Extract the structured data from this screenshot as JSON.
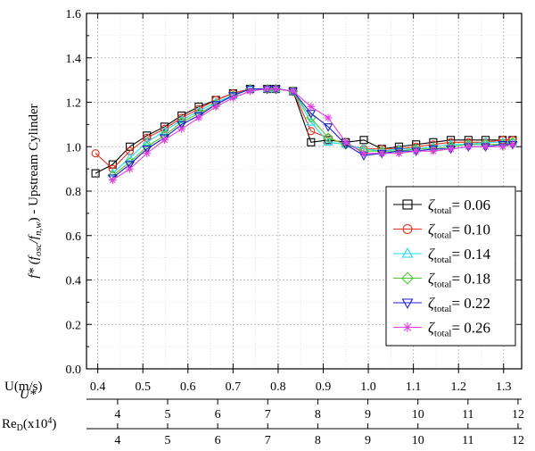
{
  "chart_data": {
    "type": "line",
    "ylabel": {
      "main": "f* (f",
      "sub1": "osc",
      "slash": "/f",
      "sub2": "n,w",
      "tail": ") - Upstream Cylinder"
    },
    "ylim": [
      0.0,
      1.6
    ],
    "yticks": [
      "0.0",
      "0.2",
      "0.4",
      "0.6",
      "0.8",
      "1.0",
      "1.2",
      "1.4",
      "1.6"
    ],
    "xlim": [
      0.375,
      1.34
    ],
    "xticks": [
      "0.4",
      "0.5",
      "0.6",
      "0.7",
      "0.8",
      "0.9",
      "1.0",
      "1.1",
      "1.2",
      "1.3"
    ],
    "grid": true,
    "legend_position": "lower-right",
    "secondary_axes": [
      {
        "label": "U(m/s)",
        "ticks": []
      },
      {
        "label": "U*",
        "ticks": [
          {
            "label": "4",
            "u": 0.444
          },
          {
            "label": "5",
            "u": 0.555
          },
          {
            "label": "6",
            "u": 0.666
          },
          {
            "label": "7",
            "u": 0.777
          },
          {
            "label": "8",
            "u": 0.888
          },
          {
            "label": "9",
            "u": 0.999
          },
          {
            "label": "10",
            "u": 1.11
          },
          {
            "label": "11",
            "u": 1.221
          },
          {
            "label": "12",
            "u": 1.332
          }
        ]
      },
      {
        "label_main": "Re",
        "label_sub": "D",
        "label_tail": "(x10",
        "label_sup": "4",
        "label_end": ")",
        "ticks": [
          {
            "label": "4",
            "u": 0.444
          },
          {
            "label": "5",
            "u": 0.555
          },
          {
            "label": "6",
            "u": 0.666
          },
          {
            "label": "7",
            "u": 0.777
          },
          {
            "label": "8",
            "u": 0.888
          },
          {
            "label": "9",
            "u": 0.999
          },
          {
            "label": "10",
            "u": 1.11
          },
          {
            "label": "11",
            "u": 1.221
          },
          {
            "label": "12",
            "u": 1.332
          }
        ]
      }
    ],
    "series": [
      {
        "name": "0.06",
        "color": "#000000",
        "marker": "square",
        "x": [
          0.395,
          0.433,
          0.471,
          0.509,
          0.548,
          0.586,
          0.624,
          0.662,
          0.7,
          0.738,
          0.776,
          0.795,
          0.833,
          0.873,
          0.911,
          0.95,
          0.99,
          1.03,
          1.068,
          1.106,
          1.144,
          1.183,
          1.222,
          1.26,
          1.298,
          1.32
        ],
        "y": [
          0.88,
          0.92,
          1.0,
          1.05,
          1.09,
          1.14,
          1.18,
          1.21,
          1.24,
          1.26,
          1.26,
          1.26,
          1.25,
          1.02,
          1.03,
          1.02,
          1.03,
          0.99,
          1.0,
          1.01,
          1.02,
          1.03,
          1.03,
          1.03,
          1.03,
          1.03
        ]
      },
      {
        "name": "0.10",
        "color": "#e8301a",
        "marker": "circle",
        "x": [
          0.395,
          0.433,
          0.471,
          0.509,
          0.548,
          0.586,
          0.624,
          0.662,
          0.7,
          0.738,
          0.776,
          0.795,
          0.833,
          0.873,
          0.911,
          0.95,
          0.99,
          1.03,
          1.068,
          1.106,
          1.144,
          1.183,
          1.222,
          1.26,
          1.298,
          1.32
        ],
        "y": [
          0.97,
          0.9,
          0.98,
          1.04,
          1.08,
          1.13,
          1.17,
          1.21,
          1.24,
          1.26,
          1.26,
          1.26,
          1.25,
          1.07,
          1.04,
          1.01,
          0.99,
          0.99,
          0.99,
          1.0,
          1.01,
          1.02,
          1.02,
          1.02,
          1.03,
          1.03
        ]
      },
      {
        "name": "0.14",
        "color": "#22d8ee",
        "marker": "triangle-up",
        "x": [
          0.433,
          0.471,
          0.509,
          0.548,
          0.586,
          0.624,
          0.662,
          0.7,
          0.738,
          0.776,
          0.795,
          0.833,
          0.873,
          0.911,
          0.95,
          0.99,
          1.03,
          1.068,
          1.106,
          1.144,
          1.183,
          1.222,
          1.26,
          1.298,
          1.32
        ],
        "y": [
          0.88,
          0.95,
          1.02,
          1.07,
          1.12,
          1.16,
          1.2,
          1.23,
          1.26,
          1.26,
          1.26,
          1.25,
          1.11,
          1.02,
          1.01,
          0.99,
          0.98,
          0.99,
          0.99,
          1.0,
          1.01,
          1.01,
          1.02,
          1.02,
          1.02
        ]
      },
      {
        "name": "0.18",
        "color": "#4ec832",
        "marker": "diamond",
        "x": [
          0.433,
          0.471,
          0.509,
          0.548,
          0.586,
          0.624,
          0.662,
          0.7,
          0.738,
          0.776,
          0.795,
          0.833,
          0.873,
          0.911,
          0.95,
          0.99,
          1.03,
          1.068,
          1.106,
          1.144,
          1.183,
          1.222,
          1.26,
          1.298,
          1.32
        ],
        "y": [
          0.87,
          0.93,
          1.0,
          1.05,
          1.11,
          1.15,
          1.19,
          1.23,
          1.26,
          1.26,
          1.26,
          1.25,
          1.13,
          1.04,
          1.01,
          0.98,
          0.98,
          0.98,
          0.99,
          0.99,
          1.0,
          1.01,
          1.01,
          1.01,
          1.02
        ]
      },
      {
        "name": "0.22",
        "color": "#1c1ccc",
        "marker": "triangle-down",
        "x": [
          0.433,
          0.471,
          0.509,
          0.548,
          0.586,
          0.624,
          0.662,
          0.7,
          0.738,
          0.776,
          0.795,
          0.833,
          0.873,
          0.911,
          0.95,
          0.99,
          1.03,
          1.068,
          1.106,
          1.144,
          1.183,
          1.222,
          1.26,
          1.298,
          1.32
        ],
        "y": [
          0.86,
          0.92,
          0.99,
          1.04,
          1.1,
          1.14,
          1.19,
          1.23,
          1.26,
          1.26,
          1.26,
          1.25,
          1.15,
          1.09,
          1.01,
          0.96,
          0.97,
          0.98,
          0.98,
          0.99,
          0.99,
          1.0,
          1.0,
          1.01,
          1.01
        ]
      },
      {
        "name": "0.26",
        "color": "#e040e0",
        "marker": "asterisk",
        "x": [
          0.433,
          0.471,
          0.509,
          0.548,
          0.586,
          0.624,
          0.662,
          0.7,
          0.738,
          0.776,
          0.795,
          0.833,
          0.873,
          0.911,
          0.95,
          0.99,
          1.03,
          1.068,
          1.106,
          1.144,
          1.183,
          1.222,
          1.26,
          1.298,
          1.32
        ],
        "y": [
          0.85,
          0.9,
          0.97,
          1.03,
          1.08,
          1.13,
          1.18,
          1.22,
          1.25,
          1.26,
          1.26,
          1.25,
          1.18,
          1.13,
          1.02,
          0.97,
          0.97,
          0.97,
          0.98,
          0.98,
          0.99,
          1.0,
          1.0,
          1.0,
          1.01
        ]
      }
    ],
    "legend": {
      "symbol": "ζ",
      "subscript": "total",
      "prefix": "= "
    }
  }
}
